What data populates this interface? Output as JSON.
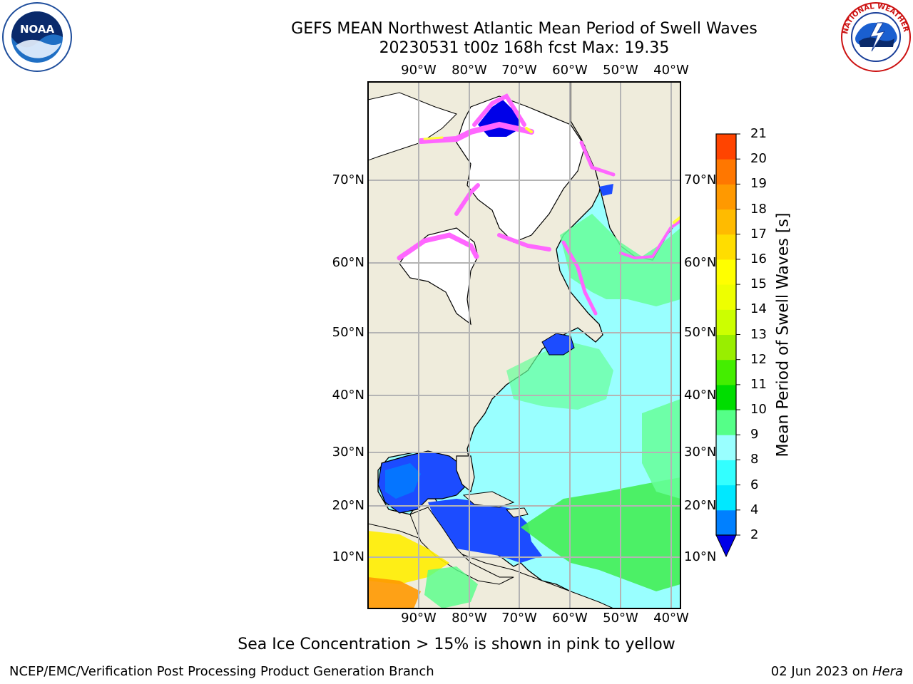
{
  "header": {
    "title_line1": "GEFS MEAN Northwest Atlantic Mean Period of Swell Waves",
    "title_line2": "20230531 t00z 168h fcst   Max: 19.35"
  },
  "logos": {
    "noaa": {
      "text": "NOAA",
      "ring_text": "NATIONAL OCEANIC AND ATMOSPHERIC ADMINISTRATION · U.S. DEPARTMENT OF COMMERCE"
    },
    "nws": {
      "ring_text": "NATIONAL WEATHER SERVICE"
    }
  },
  "map": {
    "lon_labels": [
      "90°W",
      "80°W",
      "70°W",
      "60°W",
      "50°W",
      "40°W"
    ],
    "lat_labels": [
      "70°N",
      "60°N",
      "50°N",
      "40°N",
      "30°N",
      "20°N",
      "10°N"
    ],
    "colors": {
      "land": "#efecdc",
      "ice_pink": "#ff66ff",
      "ice_yellow": "#ffff33"
    }
  },
  "colorbar": {
    "label": "Mean Period of Swell Waves [s]",
    "ticks": [
      "21",
      "20",
      "19",
      "18",
      "17",
      "16",
      "15",
      "14",
      "13",
      "12",
      "11",
      "10",
      "9",
      "8",
      "6",
      "4",
      "2"
    ],
    "colors": [
      "#0000e8",
      "#0080ff",
      "#00e8ff",
      "#33ffff",
      "#99ffff",
      "#55ff88",
      "#00dd00",
      "#44ee00",
      "#99ee00",
      "#ccff00",
      "#eeff00",
      "#ffff00",
      "#ffdd00",
      "#ffbb00",
      "#ff9900",
      "#ff7700",
      "#ff4400",
      "#ff0000"
    ]
  },
  "caption": "Sea Ice Concentration > 15% is shown in pink to yellow",
  "footer": {
    "left": "NCEP/EMC/Verification Post Processing Product Generation Branch",
    "right_date": "02 Jun 2023 on ",
    "right_host": "Hera"
  }
}
